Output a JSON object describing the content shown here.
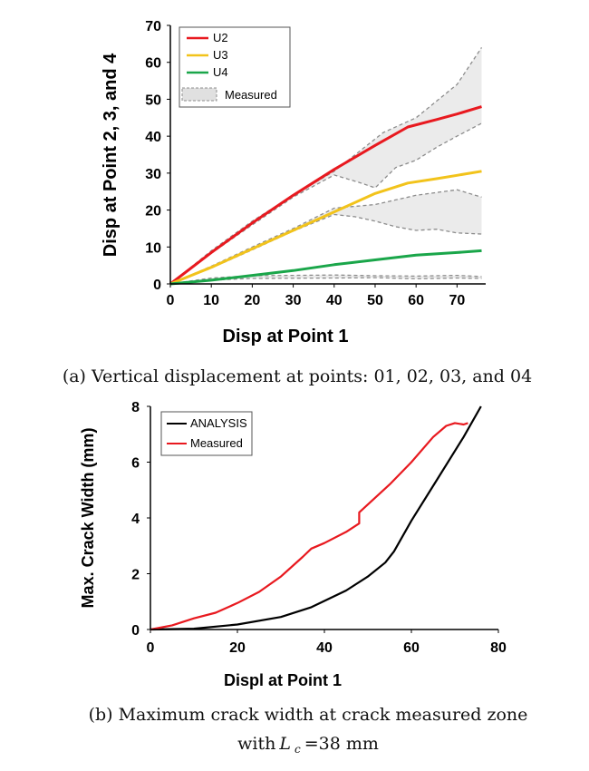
{
  "chart_data": [
    {
      "type": "line",
      "xlabel": "Disp at Point 1",
      "ylabel": "Disp at Point 2, 3, and 4",
      "xlim": [
        0,
        77
      ],
      "ylim": [
        0,
        70
      ],
      "xticks": [
        "0",
        "10",
        "20",
        "30",
        "40",
        "50",
        "60",
        "70"
      ],
      "yticks": [
        "0",
        "10",
        "20",
        "30",
        "40",
        "50",
        "60",
        "70"
      ],
      "legend_placement": "top-left",
      "series": [
        {
          "name": "U2",
          "color": "#e8191f",
          "x": [
            0,
            10,
            20,
            30,
            40,
            50,
            58,
            65,
            70,
            76
          ],
          "y": [
            0,
            8.5,
            16.5,
            24,
            31,
            37.5,
            42.5,
            44.5,
            46,
            48
          ]
        },
        {
          "name": "U3",
          "color": "#f2c31b",
          "x": [
            0,
            10,
            20,
            30,
            40,
            50,
            58,
            65,
            70,
            76
          ],
          "y": [
            0,
            4.5,
            9.5,
            14.5,
            19.5,
            24.5,
            27.3,
            28.5,
            29.4,
            30.5
          ]
        },
        {
          "name": "U4",
          "color": "#1aa64a",
          "x": [
            0,
            10,
            20,
            30,
            40,
            50,
            60,
            70,
            76
          ],
          "y": [
            0,
            1,
            2.3,
            3.6,
            5.2,
            6.5,
            7.8,
            8.5,
            9
          ]
        }
      ],
      "measured_bands": [
        {
          "name": "Measured",
          "upper": {
            "x": [
              0,
              10,
              20,
              30,
              40,
              52,
              60,
              70,
              76
            ],
            "y": [
              0,
              9,
              17,
              24,
              30.5,
              41,
              45,
              54,
              64
            ]
          },
          "lower": {
            "x": [
              0,
              10,
              20,
              30,
              40,
              46,
              50,
              55,
              60,
              65,
              70,
              76
            ],
            "y": [
              0,
              8.3,
              16,
              23.5,
              29.5,
              27.5,
              26,
              31.5,
              33.5,
              37,
              40,
              43.5
            ]
          }
        },
        {
          "name": "Measured",
          "upper": {
            "x": [
              0,
              10,
              20,
              30,
              40,
              50,
              60,
              70,
              76
            ],
            "y": [
              0,
              4.8,
              10,
              15,
              20.5,
              21.5,
              24,
              25.5,
              23.5
            ]
          },
          "lower": {
            "x": [
              0,
              10,
              20,
              30,
              40,
              45,
              50,
              55,
              60,
              65,
              70,
              76
            ],
            "y": [
              0,
              4.3,
              9.2,
              14.3,
              18.8,
              18.2,
              17,
              15.5,
              14.5,
              14.8,
              13.8,
              13.5
            ]
          }
        },
        {
          "name": "Measured",
          "upper": {
            "x": [
              0,
              10,
              20,
              40,
              50,
              60,
              70,
              76
            ],
            "y": [
              0,
              1.6,
              2.2,
              2.4,
              2.2,
              2.1,
              2.3,
              2
            ]
          },
          "lower": {
            "x": [
              0,
              10,
              20,
              40,
              50,
              60,
              70,
              76
            ],
            "y": [
              0,
              1,
              1.5,
              1.6,
              1.7,
              1.4,
              1.6,
              1.5
            ]
          }
        }
      ],
      "legend": {
        "u2": "U2",
        "u3": "U3",
        "u4": "U4",
        "measured": "Measured"
      }
    },
    {
      "type": "line",
      "xlabel": "Displ at Point 1",
      "ylabel": "Max. Crack Width (mm)",
      "xlim": [
        0,
        80
      ],
      "ylim": [
        0,
        8
      ],
      "xticks": [
        "0",
        "20",
        "40",
        "60",
        "80"
      ],
      "yticks": [
        "0",
        "2",
        "4",
        "6",
        "8"
      ],
      "legend_placement": "top-left",
      "series": [
        {
          "name": "ANALYSIS",
          "color": "#000000",
          "x": [
            0,
            10,
            20,
            30,
            37,
            45,
            50,
            54,
            56,
            60,
            66,
            72,
            76
          ],
          "y": [
            0,
            0.03,
            0.18,
            0.45,
            0.8,
            1.4,
            1.9,
            2.4,
            2.8,
            3.9,
            5.4,
            6.9,
            8
          ]
        },
        {
          "name": "Measured",
          "color": "#e8191f",
          "x": [
            0,
            5,
            10,
            15,
            20,
            25,
            30,
            35,
            37,
            40,
            45,
            48,
            48,
            55,
            60,
            65,
            68,
            70,
            72,
            73
          ],
          "y": [
            0,
            0.15,
            0.4,
            0.6,
            0.95,
            1.35,
            1.9,
            2.6,
            2.9,
            3.1,
            3.5,
            3.8,
            4.2,
            5.2,
            6,
            6.9,
            7.3,
            7.4,
            7.35,
            7.4
          ]
        }
      ],
      "legend": {
        "analysis": "ANALYSIS",
        "measured": "Measured"
      }
    }
  ],
  "captions": {
    "a": "(a) Vertical displacement at points: 01, 02, 03, and 04",
    "b_line1": "(b) Maximum crack width at crack measured zone",
    "b_line2_pre": "with",
    "b_var": "L",
    "b_sub": "c",
    "b_line2_post": "=38 mm"
  },
  "colors": {
    "measured_fill": "#ebebeb",
    "measured_stroke": "#8c8c8c"
  }
}
